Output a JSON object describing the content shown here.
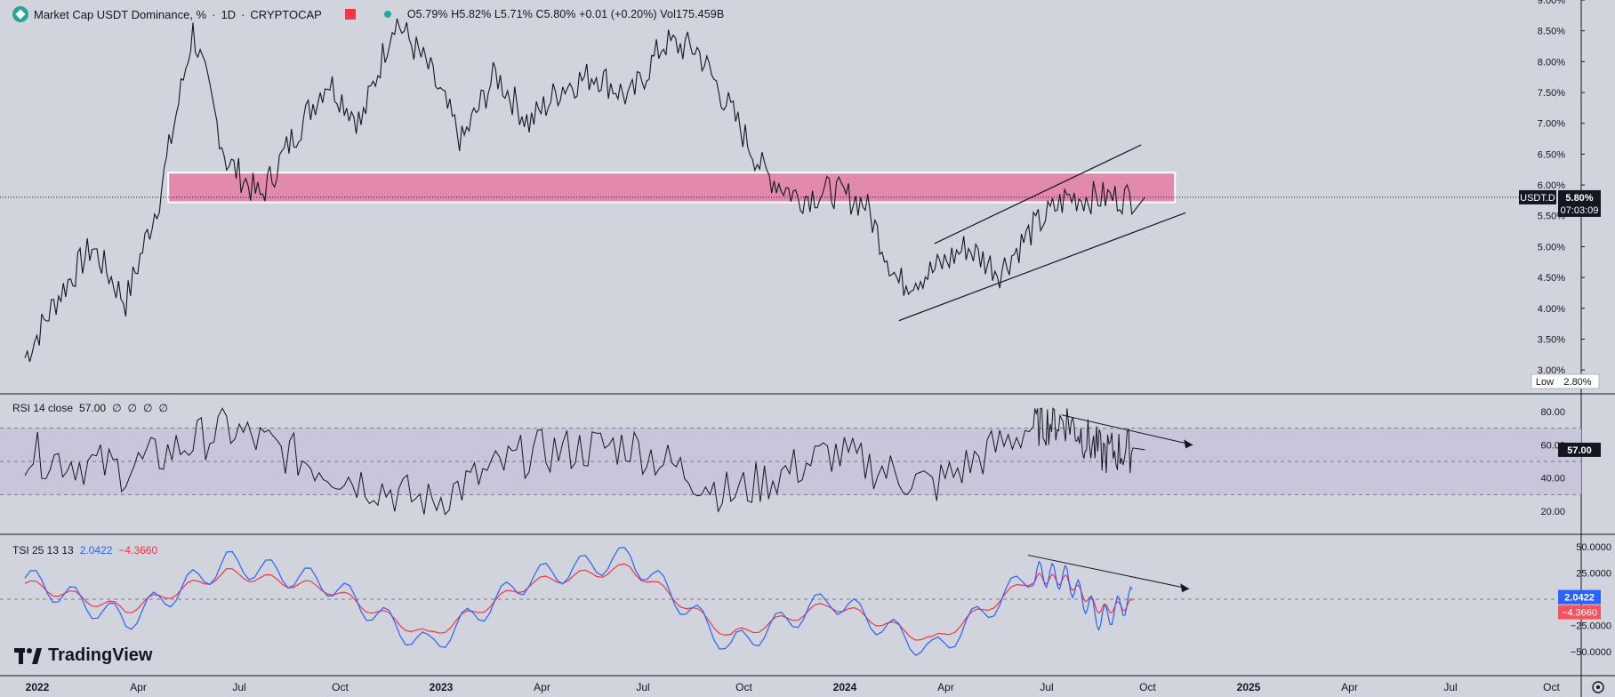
{
  "legend": {
    "title": "Market Cap USDT Dominance, %",
    "interval": "1D",
    "source": "CRYPTOCAP",
    "ohlc": {
      "open": "O5.79%",
      "high": "H5.82%",
      "low": "L5.71%",
      "close": "C5.80%",
      "change": "+0.01 (+0.20%)",
      "volume": "Vol175.459B"
    }
  },
  "icons": {
    "symbol": "usdt-logo-icon",
    "flag": "flag-icon",
    "status": "market-status-dot-icon",
    "logo": "tradingview-logo-icon"
  },
  "branding": {
    "name": "TradingView"
  },
  "colors": {
    "background": "#d1d4dc",
    "zone": "#e57ca6",
    "rsi_band": "#c8c4dc",
    "tsi_line": "#2962ff",
    "tsi_signal": "#f23645",
    "badge_dark": "#131722",
    "badge_blue": "#2962ff",
    "badge_red": "#f7525f"
  },
  "time_axis": [
    "2022",
    "Apr",
    "Jul",
    "Oct",
    "2023",
    "Apr",
    "Jul",
    "Oct",
    "2024",
    "Apr",
    "Jul",
    "Oct",
    "2025",
    "Apr",
    "Jul",
    "Oct"
  ],
  "price_axis": {
    "ticks": [
      "9.00%",
      "8.50%",
      "8.00%",
      "7.50%",
      "7.00%",
      "6.50%",
      "6.00%",
      "5.50%",
      "5.00%",
      "4.50%",
      "4.00%",
      "3.50%",
      "3.00%"
    ],
    "badge_symbol": "USDT.D",
    "badge_value": "5.80%",
    "badge_timer": "07:03:09",
    "low_label": "Low",
    "low_value": "2.80%"
  },
  "rsi": {
    "label": "RSI 14 close",
    "value": "57.00",
    "extras": [
      "∅",
      "∅",
      "∅",
      "∅"
    ],
    "ticks": [
      "80.00",
      "60.00",
      "40.00",
      "20.00"
    ],
    "badge": "57.00"
  },
  "tsi": {
    "label": "TSI 25 13 13",
    "value1": "2.0422",
    "value2": "−4.3660",
    "ticks": [
      "50.0000",
      "25.0000",
      "−25.0000",
      "−50.0000"
    ],
    "badge1": "2.0422",
    "badge2": "−4.3660"
  },
  "chart_data": {
    "type": "line",
    "title": "Market Cap USDT Dominance, % · 1D · CRYPTOCAP",
    "x_range": [
      "2022-01",
      "2025-10"
    ],
    "y_range_percent": [
      2.8,
      9.0
    ],
    "resistance_zone_percent": [
      5.72,
      6.2
    ],
    "rising_channel": {
      "start": "2024-03",
      "end": "2024-11",
      "lower_from": 3.8,
      "lower_to": 5.55,
      "upper_from": 5.05,
      "upper_to": 6.65
    },
    "price_series": {
      "x": [
        "2022-01",
        "2022-02",
        "2022-03",
        "2022-04",
        "2022-05",
        "2022-06",
        "2022-07",
        "2022-08",
        "2022-09",
        "2022-10",
        "2022-11",
        "2022-12",
        "2023-01",
        "2023-02",
        "2023-03",
        "2023-04",
        "2023-05",
        "2023-06",
        "2023-07",
        "2023-08",
        "2023-09",
        "2023-10",
        "2023-11",
        "2023-12",
        "2024-01",
        "2024-02",
        "2024-03",
        "2024-04",
        "2024-05",
        "2024-06",
        "2024-07",
        "2024-08",
        "2024-09",
        "2024-10"
      ],
      "values": [
        3.2,
        4.2,
        5.0,
        4.1,
        5.8,
        8.5,
        6.4,
        5.8,
        6.8,
        7.7,
        7.0,
        8.7,
        7.9,
        6.7,
        7.8,
        7.0,
        7.6,
        7.8,
        7.4,
        8.3,
        8.2,
        7.2,
        6.2,
        5.8,
        5.9,
        5.7,
        4.4,
        4.6,
        5.0,
        4.6,
        5.3,
        5.8,
        5.8,
        5.8
      ]
    },
    "rsi_series": {
      "x": [
        "2022-01",
        "2022-04",
        "2022-07",
        "2022-10",
        "2023-01",
        "2023-04",
        "2023-07",
        "2023-10",
        "2024-01",
        "2024-04",
        "2024-07",
        "2024-08",
        "2024-09",
        "2024-10"
      ],
      "values": [
        55,
        45,
        70,
        45,
        25,
        55,
        60,
        30,
        55,
        35,
        72,
        75,
        55,
        57
      ],
      "bands": [
        30,
        50,
        70
      ]
    },
    "tsi_series": {
      "x": [
        "2022-01",
        "2022-04",
        "2022-07",
        "2022-10",
        "2023-01",
        "2023-04",
        "2023-07",
        "2023-10",
        "2024-01",
        "2024-04",
        "2024-07",
        "2024-08",
        "2024-09",
        "2024-10"
      ],
      "tsi": [
        20,
        -20,
        35,
        15,
        -45,
        20,
        40,
        -45,
        0,
        -50,
        25,
        20,
        -20,
        2.04
      ],
      "signal": [
        15,
        -10,
        25,
        10,
        -35,
        15,
        30,
        -35,
        -5,
        -40,
        20,
        18,
        -10,
        -4.37
      ]
    }
  }
}
